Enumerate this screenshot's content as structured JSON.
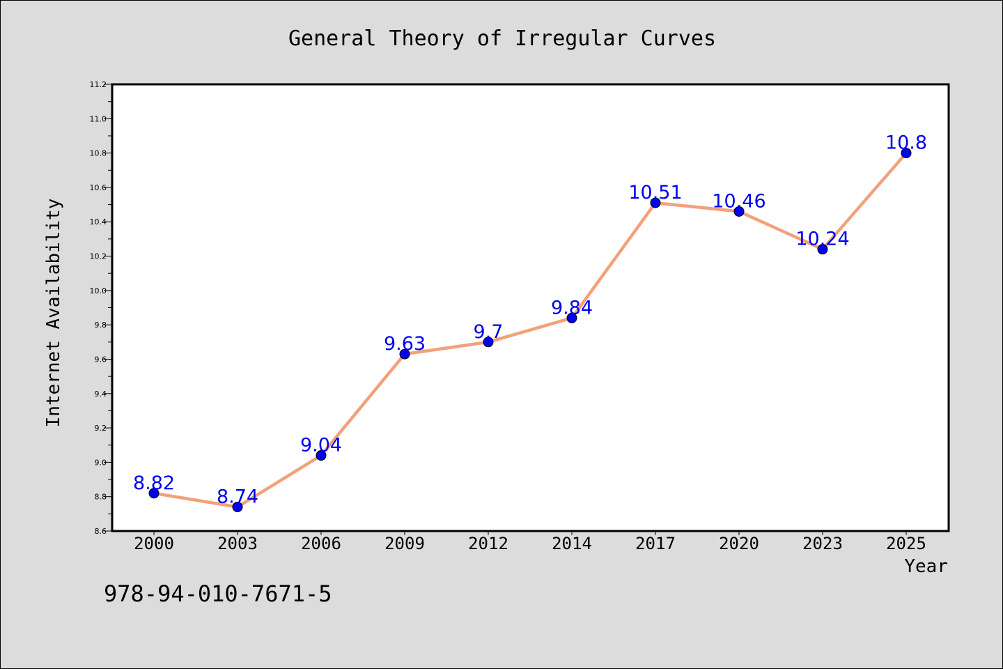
{
  "chart_data": {
    "type": "line",
    "title": "General Theory of Irregular Curves",
    "xlabel": "Year",
    "ylabel": "Internet Availability",
    "categories": [
      "2000",
      "2003",
      "2006",
      "2009",
      "2012",
      "2014",
      "2017",
      "2020",
      "2023",
      "2025"
    ],
    "series": [
      {
        "values": [
          8.82,
          8.74,
          9.04,
          9.63,
          9.7,
          9.84,
          10.51,
          10.46,
          10.24,
          10.8
        ],
        "data_labels": [
          "8.82",
          "8.74",
          "9.04",
          "9.63",
          "9.7",
          "9.84",
          "10.51",
          "10.46",
          "10.24",
          "10.8"
        ]
      }
    ],
    "ylim": [
      8.6,
      11.2
    ],
    "yticks": [
      "8.6",
      "8.8",
      "9.0",
      "9.2",
      "9.4",
      "9.6",
      "9.8",
      "10.0",
      "10.2",
      "10.4",
      "10.6",
      "10.8",
      "11.0",
      "11.2"
    ],
    "grid": false,
    "colors": {
      "line": "#f4a07a",
      "marker": "#0000ee",
      "label": "#0000ee",
      "background": "#dcdcdc",
      "plot_area": "#ffffff"
    }
  },
  "caption": "978-94-010-7671-5"
}
